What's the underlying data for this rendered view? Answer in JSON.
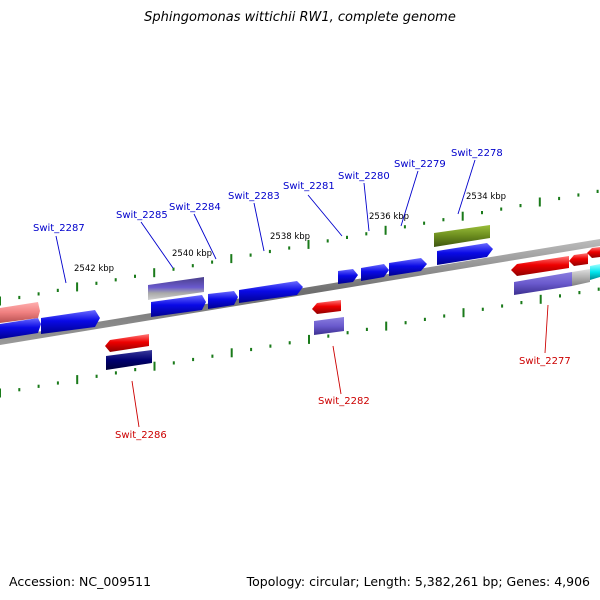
{
  "title": "Sphingomonas wittichii RW1, complete genome",
  "footer": {
    "accession": "Accession: NC_009511",
    "summary": "Topology: circular; Length: 5,382,261 bp; Genes: 4,906"
  },
  "scale_labels": [
    "2542 kbp",
    "2540 kbp",
    "2538 kbp",
    "2536 kbp",
    "2534 kbp"
  ],
  "gene_labels_top": [
    "Swit_2287",
    "Swit_2285",
    "Swit_2284",
    "Swit_2283",
    "Swit_2281",
    "Swit_2280",
    "Swit_2279",
    "Swit_2278"
  ],
  "gene_labels_bottom": [
    "Swit_2286",
    "Swit_2282",
    "Swit_2277"
  ],
  "colors": {
    "forward_gene": "#0a0ae6",
    "reverse_gene": "#ee0000",
    "forward_label": "#0000cc",
    "reverse_label": "#cc0000",
    "backbone": "#7a7a7a",
    "tick": "#1a7a1a",
    "olive_gene": "#6b8c1e",
    "navy_gene": "#000070",
    "slate_gene": "#6a5acd",
    "pink_gene": "#f08080",
    "cyan_gene": "#00e5ee"
  }
}
